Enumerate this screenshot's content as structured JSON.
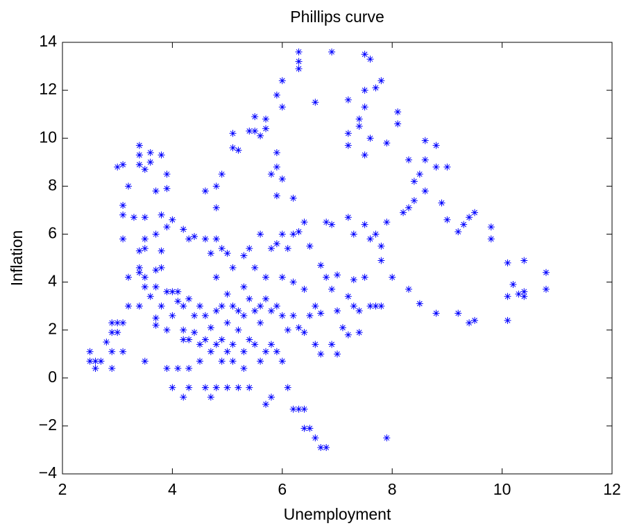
{
  "chart_data": {
    "type": "scatter",
    "title": "Phillips curve",
    "x_label": "Unemployment",
    "y_label": "Inflation",
    "color": "#0000ff",
    "x": [
      2.5,
      2.5,
      2.6,
      2.6,
      2.7,
      2.8,
      2.9,
      2.9,
      2.9,
      2.9,
      3.0,
      3.0,
      3.1,
      3.1,
      3.0,
      3.1,
      3.1,
      3.1,
      3.1,
      3.2,
      3.2,
      3.2,
      3.3,
      3.4,
      3.4,
      3.4,
      3.4,
      3.4,
      3.4,
      3.4,
      3.5,
      3.5,
      3.5,
      3.5,
      3.5,
      3.5,
      3.5,
      3.6,
      3.6,
      3.6,
      3.7,
      3.7,
      3.7,
      3.7,
      3.7,
      3.7,
      3.8,
      3.8,
      3.8,
      3.8,
      3.8,
      3.9,
      3.9,
      3.9,
      3.9,
      3.9,
      3.9,
      4.0,
      4.0,
      4.0,
      4.0,
      4.1,
      4.1,
      4.1,
      4.2,
      4.2,
      4.2,
      4.2,
      4.2,
      4.3,
      4.3,
      4.3,
      4.3,
      4.3,
      4.4,
      4.4,
      4.4,
      4.5,
      4.5,
      4.5,
      4.6,
      4.6,
      4.6,
      4.6,
      4.6,
      4.7,
      4.7,
      4.7,
      4.7,
      4.8,
      4.8,
      4.8,
      4.8,
      4.8,
      4.8,
      4.8,
      4.9,
      4.9,
      4.9,
      4.9,
      4.9,
      5.0,
      5.0,
      5.0,
      5.0,
      5.0,
      5.1,
      5.1,
      5.1,
      5.1,
      5.1,
      5.1,
      5.2,
      5.2,
      5.2,
      5.2,
      5.3,
      5.3,
      5.3,
      5.3,
      5.3,
      5.4,
      5.4,
      5.4,
      5.4,
      5.4,
      5.5,
      5.5,
      5.5,
      5.5,
      5.5,
      5.6,
      5.6,
      5.6,
      5.6,
      5.6,
      5.7,
      5.7,
      5.7,
      5.7,
      5.7,
      5.7,
      5.8,
      5.8,
      5.8,
      5.8,
      5.8,
      5.9,
      5.9,
      5.9,
      5.9,
      5.9,
      5.9,
      5.9,
      6.0,
      6.0,
      6.0,
      6.0,
      6.0,
      6.0,
      6.0,
      6.1,
      6.1,
      6.1,
      6.2,
      6.2,
      6.2,
      6.2,
      6.2,
      6.3,
      6.3,
      6.3,
      6.3,
      6.3,
      6.3,
      6.4,
      6.4,
      6.4,
      6.4,
      6.4,
      6.5,
      6.5,
      6.5,
      6.6,
      6.6,
      6.6,
      6.6,
      6.7,
      6.7,
      6.7,
      6.7,
      6.8,
      6.8,
      6.8,
      6.9,
      6.9,
      6.9,
      6.9,
      7.0,
      7.0,
      7.0,
      7.1,
      7.2,
      7.2,
      7.2,
      7.2,
      7.2,
      7.2,
      7.3,
      7.3,
      7.3,
      7.4,
      7.4,
      7.4,
      7.4,
      7.5,
      7.5,
      7.5,
      7.5,
      7.5,
      7.5,
      7.6,
      7.6,
      7.6,
      7.6,
      7.7,
      7.7,
      7.7,
      7.8,
      7.8,
      7.8,
      7.8,
      7.9,
      7.9,
      7.9,
      8.0,
      8.1,
      8.1,
      8.2,
      8.3,
      8.3,
      8.3,
      8.4,
      8.4,
      8.5,
      8.5,
      8.6,
      8.6,
      8.6,
      8.8,
      8.8,
      8.8,
      8.9,
      9.0,
      9.0,
      9.2,
      9.2,
      9.3,
      9.4,
      9.4,
      9.5,
      9.5,
      9.8,
      9.8,
      10.1,
      10.1,
      10.1,
      10.2,
      10.3,
      10.4,
      10.4,
      10.4,
      10.8,
      10.8
    ],
    "values": [
      1.1,
      0.7,
      0.4,
      0.7,
      0.7,
      1.5,
      1.9,
      2.3,
      1.1,
      0.4,
      2.3,
      1.9,
      2.3,
      1.1,
      8.8,
      8.9,
      7.2,
      6.8,
      5.8,
      8.0,
      4.2,
      3.0,
      6.7,
      9.7,
      9.3,
      8.9,
      5.3,
      4.6,
      4.4,
      3.0,
      8.7,
      6.7,
      5.8,
      5.4,
      4.2,
      3.8,
      0.7,
      9.4,
      9.0,
      3.4,
      7.8,
      6.0,
      4.5,
      3.8,
      2.5,
      2.2,
      9.3,
      6.8,
      5.3,
      4.6,
      3.0,
      8.5,
      7.9,
      6.3,
      3.6,
      2.0,
      0.4,
      6.6,
      3.6,
      2.6,
      -0.4,
      3.6,
      3.2,
      0.4,
      6.2,
      3.0,
      2.0,
      1.6,
      -0.8,
      5.8,
      3.3,
      1.6,
      0.4,
      -0.4,
      5.9,
      2.6,
      1.9,
      3.0,
      1.4,
      0.7,
      7.8,
      5.8,
      2.6,
      1.6,
      -0.4,
      5.2,
      2.1,
      1.1,
      -0.8,
      8.0,
      7.1,
      5.8,
      4.2,
      2.8,
      1.4,
      -0.4,
      8.5,
      5.4,
      3.0,
      1.6,
      0.7,
      5.2,
      3.5,
      2.3,
      1.1,
      -0.4,
      10.2,
      9.6,
      4.6,
      3.0,
      1.4,
      0.7,
      9.5,
      2.8,
      2.0,
      -0.4,
      5.1,
      3.8,
      2.6,
      1.1,
      0.4,
      10.3,
      5.4,
      3.3,
      1.6,
      -0.4,
      10.9,
      10.3,
      4.6,
      2.8,
      1.4,
      10.1,
      6.0,
      3.0,
      2.3,
      0.7,
      10.8,
      10.4,
      4.2,
      3.3,
      1.1,
      -1.1,
      8.5,
      5.4,
      2.8,
      1.4,
      -0.8,
      11.8,
      9.4,
      8.8,
      7.6,
      5.6,
      3.0,
      1.1,
      12.4,
      11.3,
      8.3,
      6.0,
      4.2,
      2.6,
      0.7,
      5.4,
      2.0,
      -0.4,
      7.5,
      6.0,
      4.0,
      2.6,
      -1.3,
      13.6,
      13.2,
      12.9,
      6.1,
      2.1,
      -1.3,
      6.5,
      3.7,
      1.9,
      -1.3,
      -2.1,
      5.5,
      2.6,
      -2.1,
      11.5,
      3.0,
      1.4,
      -2.5,
      4.7,
      2.7,
      1.0,
      -2.9,
      6.5,
      4.2,
      -2.9,
      13.6,
      6.4,
      3.7,
      1.4,
      4.3,
      2.8,
      1.0,
      2.1,
      11.6,
      10.2,
      9.7,
      6.7,
      3.4,
      1.8,
      6.0,
      4.1,
      3.0,
      10.8,
      10.5,
      2.8,
      1.9,
      13.5,
      12.0,
      11.3,
      9.3,
      6.4,
      4.2,
      13.3,
      10.0,
      5.8,
      3.0,
      12.1,
      6.0,
      3.0,
      12.4,
      5.5,
      4.9,
      3.0,
      9.8,
      6.5,
      -2.5,
      4.2,
      11.1,
      10.6,
      6.9,
      9.1,
      7.1,
      3.7,
      8.2,
      7.4,
      8.5,
      3.1,
      9.9,
      9.1,
      7.8,
      9.7,
      8.8,
      2.7,
      7.3,
      8.8,
      6.6,
      6.1,
      2.7,
      6.4,
      6.7,
      2.3,
      2.4,
      6.9,
      6.3,
      5.8,
      4.8,
      3.4,
      2.4,
      3.9,
      3.5,
      4.9,
      3.6,
      3.4,
      4.4,
      3.7
    ],
    "xlim": [
      2,
      12
    ],
    "xticks": [
      2,
      4,
      6,
      8,
      10,
      12
    ],
    "ylim": [
      -4,
      14
    ],
    "yticks": [
      {
        "value": -4,
        "label": "−4"
      },
      {
        "value": -2,
        "label": "−2"
      },
      0,
      2,
      4,
      6,
      8,
      10,
      12,
      14
    ],
    "grid": false
  }
}
